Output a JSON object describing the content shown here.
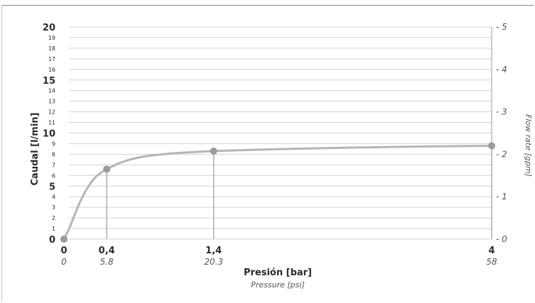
{
  "chart_data": {
    "type": "line",
    "xlabel": "Presión [bar]",
    "xlabel_secondary": "Pressure [psi]",
    "ylabel": "Caudal [l/min]",
    "ylabel_secondary": "Flow rate [gpm]",
    "x_ticks": [
      {
        "bar": "0",
        "psi": "0"
      },
      {
        "bar": "0,4",
        "psi": "5.8"
      },
      {
        "bar": "1,4",
        "psi": "20.3"
      },
      {
        "bar": "4",
        "psi": "58"
      }
    ],
    "y_ticks": [
      "0",
      "1",
      "2",
      "3",
      "4",
      "5",
      "6",
      "7",
      "8",
      "9",
      "10",
      "11",
      "12",
      "13",
      "14",
      "15",
      "16",
      "17",
      "18",
      "19",
      "20"
    ],
    "y_major_ticks": [
      0,
      5,
      10,
      15,
      20
    ],
    "y_right_ticks": [
      "0",
      "1",
      "2",
      "3",
      "4",
      "5"
    ],
    "ylim": [
      0,
      20
    ],
    "xlim": [
      0,
      4
    ],
    "grid": true,
    "points": [
      {
        "x": 0,
        "y": 0
      },
      {
        "x": 0.4,
        "y": 6.6
      },
      {
        "x": 1.4,
        "y": 8.3
      },
      {
        "x": 4,
        "y": 8.8
      }
    ],
    "curve": [
      {
        "x": 0,
        "y": 0
      },
      {
        "x": 0.05,
        "y": 1.0
      },
      {
        "x": 0.1,
        "y": 2.3
      },
      {
        "x": 0.15,
        "y": 3.5
      },
      {
        "x": 0.2,
        "y": 4.5
      },
      {
        "x": 0.25,
        "y": 5.3
      },
      {
        "x": 0.3,
        "y": 5.9
      },
      {
        "x": 0.35,
        "y": 6.3
      },
      {
        "x": 0.4,
        "y": 6.6
      },
      {
        "x": 0.5,
        "y": 7.1
      },
      {
        "x": 0.6,
        "y": 7.45
      },
      {
        "x": 0.7,
        "y": 7.7
      },
      {
        "x": 0.8,
        "y": 7.87
      },
      {
        "x": 1.0,
        "y": 8.08
      },
      {
        "x": 1.2,
        "y": 8.2
      },
      {
        "x": 1.4,
        "y": 8.3
      },
      {
        "x": 1.8,
        "y": 8.43
      },
      {
        "x": 2.2,
        "y": 8.53
      },
      {
        "x": 2.6,
        "y": 8.61
      },
      {
        "x": 3.0,
        "y": 8.68
      },
      {
        "x": 3.5,
        "y": 8.75
      },
      {
        "x": 4.0,
        "y": 8.8
      }
    ]
  }
}
